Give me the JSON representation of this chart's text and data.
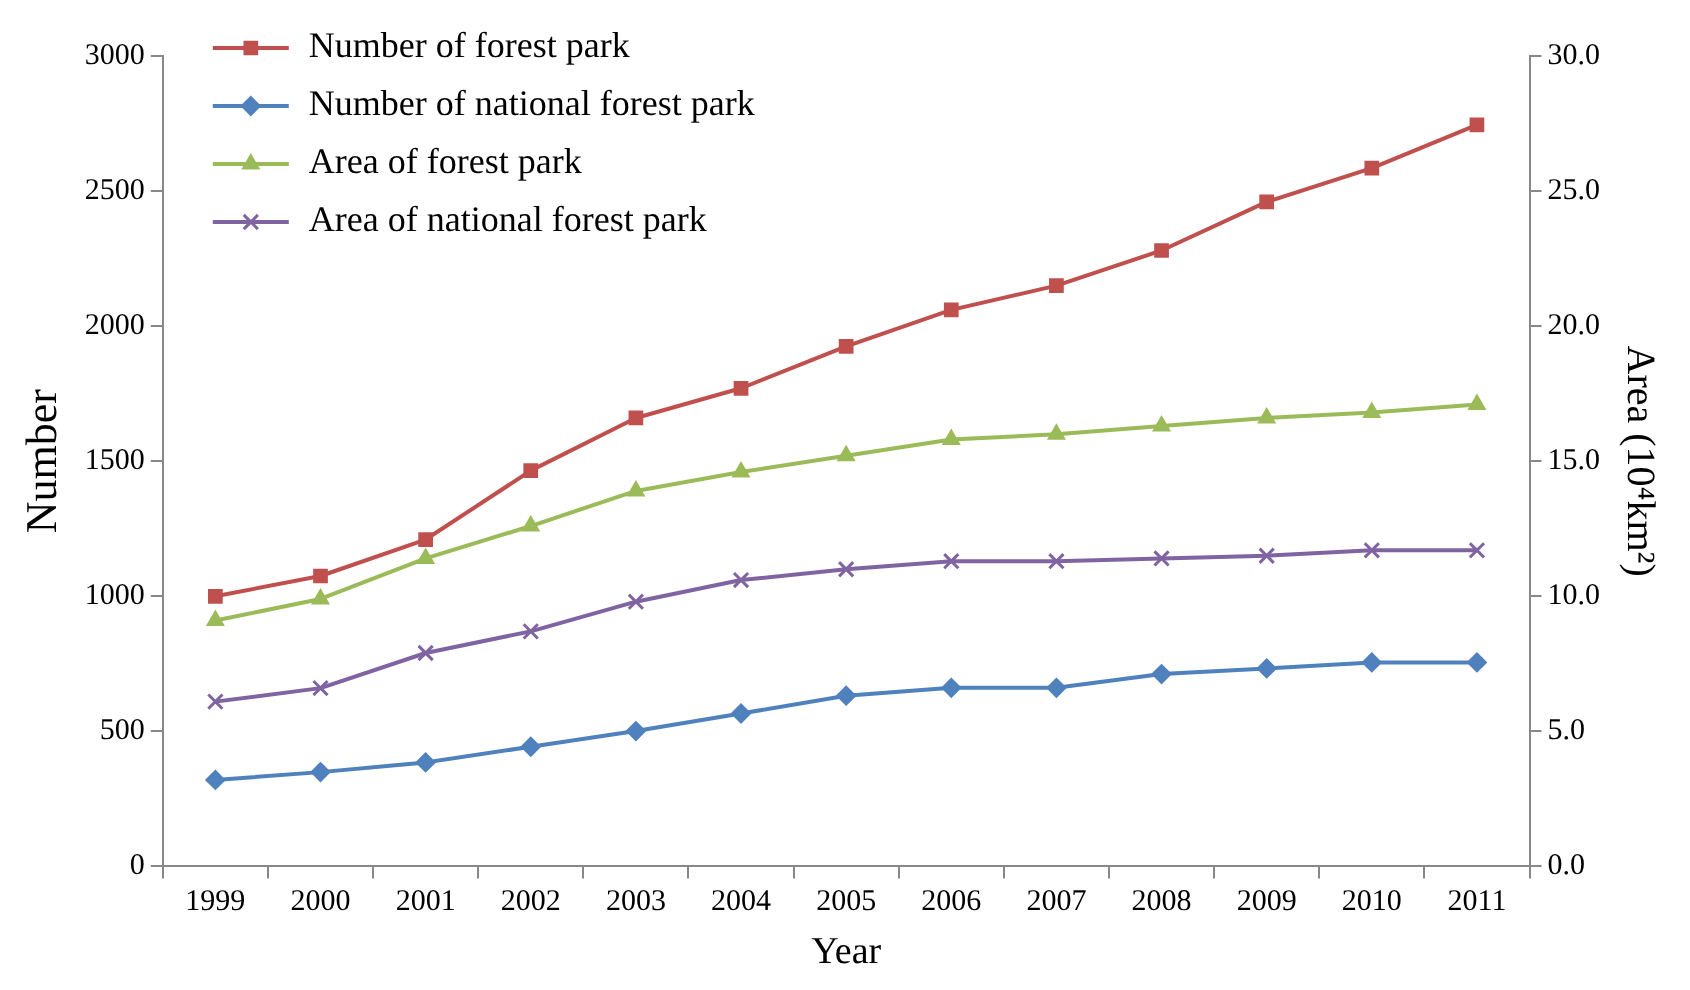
{
  "chart_data": {
    "type": "line",
    "xlabel": "Year",
    "ylabel": "Number",
    "y2label": "Area (10⁴km²)",
    "categories": [
      "1999",
      "2000",
      "2001",
      "2002",
      "2003",
      "2004",
      "2005",
      "2006",
      "2007",
      "2008",
      "2009",
      "2010",
      "2011"
    ],
    "series": [
      {
        "name": "Number of forest park",
        "color": "#c0504d",
        "marker": "square",
        "values": [
          1000,
          1075,
          1210,
          1465,
          1660,
          1770,
          1925,
          2060,
          2150,
          2280,
          2460,
          2585,
          2745
        ]
      },
      {
        "name": "Number of national forest park",
        "color": "#4f81bd",
        "marker": "diamond",
        "values": [
          320,
          349,
          385,
          443,
          501,
          566,
          632,
          661,
          661,
          712,
          733,
          755,
          755
        ]
      },
      {
        "name": "Area of forest park",
        "color": "#9bbb59",
        "marker": "triangle",
        "axis": "y2",
        "values": [
          9.1,
          9.9,
          11.4,
          12.6,
          13.9,
          14.6,
          15.2,
          15.8,
          16.0,
          16.3,
          16.6,
          16.8,
          17.1
        ]
      },
      {
        "name": "Area of national forest park",
        "color": "#8064a2",
        "marker": "cross",
        "axis": "y2",
        "values": [
          6.1,
          6.6,
          7.9,
          8.7,
          9.8,
          10.6,
          11.0,
          11.3,
          11.3,
          11.4,
          11.5,
          11.7,
          11.7
        ]
      }
    ],
    "ylim": [
      0,
      3000
    ],
    "yticks": [
      0,
      500,
      1000,
      1500,
      2000,
      2500,
      3000
    ],
    "y2lim": [
      0,
      30
    ],
    "y2ticks": [
      {
        "value": 0,
        "label": "0.0"
      },
      {
        "value": 5,
        "label": "5.0"
      },
      {
        "value": 10,
        "label": "10.0"
      },
      {
        "value": 15,
        "label": "15.0"
      },
      {
        "value": 20,
        "label": "20.0"
      },
      {
        "value": 25,
        "label": "25.0"
      },
      {
        "value": 30,
        "label": "30.0"
      }
    ],
    "grid": false,
    "legend": "top left",
    "line_style": "solid"
  }
}
